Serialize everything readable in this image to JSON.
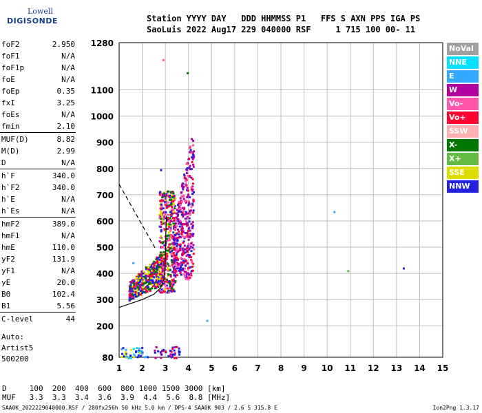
{
  "logo": {
    "line1": "Lowell",
    "line2": "DIGISONDE"
  },
  "header": {
    "line1": "Station YYYY DAY   DDD HHMMSS P1   FFS S AXN PPS IGA PS",
    "line2": "SaoLuis 2022 Aug17 229 040000 RSF     1 715 100 00- 11"
  },
  "params": [
    {
      "group": [
        {
          "name": "foF2",
          "value": "2.950"
        },
        {
          "name": "foF1",
          "value": "N/A"
        },
        {
          "name": "foF1p",
          "value": "N/A"
        },
        {
          "name": "foE",
          "value": "N/A"
        },
        {
          "name": "foEp",
          "value": "0.35"
        },
        {
          "name": "fxI",
          "value": "3.25"
        },
        {
          "name": "foEs",
          "value": "N/A"
        },
        {
          "name": "fmin",
          "value": "2.10"
        }
      ]
    },
    {
      "group": [
        {
          "name": "MUF(D)",
          "value": "8.82"
        },
        {
          "name": "M(D)",
          "value": "2.99"
        },
        {
          "name": "D",
          "value": "N/A"
        }
      ]
    },
    {
      "group": [
        {
          "name": "h`F",
          "value": "340.0"
        },
        {
          "name": "h`F2",
          "value": "340.0"
        },
        {
          "name": "h`E",
          "value": "N/A"
        },
        {
          "name": "h`Es",
          "value": "N/A"
        }
      ]
    },
    {
      "group": [
        {
          "name": "hmF2",
          "value": "389.0"
        },
        {
          "name": "hmF1",
          "value": "N/A"
        },
        {
          "name": "hmE",
          "value": "110.0"
        },
        {
          "name": "yF2",
          "value": "131.9"
        },
        {
          "name": "yF1",
          "value": "N/A"
        },
        {
          "name": "yE",
          "value": "20.0"
        },
        {
          "name": "B0",
          "value": "102.4"
        },
        {
          "name": "B1",
          "value": "5.56"
        }
      ]
    },
    {
      "group": [
        {
          "name": "C-level",
          "value": "44"
        }
      ]
    }
  ],
  "auto": {
    "line1": "Auto:",
    "line2": "Artist5",
    "line3": "500200"
  },
  "legend": [
    {
      "label": "NoVal",
      "color": "#a0a0a0"
    },
    {
      "label": "NNE",
      "color": "#00e0ff"
    },
    {
      "label": "E",
      "color": "#33aaff"
    },
    {
      "label": "W",
      "color": "#b000a0"
    },
    {
      "label": "Vo-",
      "color": "#ff55aa"
    },
    {
      "label": "Vo+",
      "color": "#ff0030"
    },
    {
      "label": "SSW",
      "color": "#ffb0b0"
    },
    {
      "label": "X-",
      "color": "#007700"
    },
    {
      "label": "X+",
      "color": "#66bb44"
    },
    {
      "label": "SSE",
      "color": "#dddd00"
    },
    {
      "label": "NNW",
      "color": "#2222dd"
    }
  ],
  "chart_data": {
    "type": "scatter",
    "title": "",
    "xlabel": "",
    "ylabel": "",
    "xlim": [
      1,
      15
    ],
    "ylim": [
      80,
      1280
    ],
    "x_ticks": [
      1,
      2,
      3,
      4,
      5,
      6,
      7,
      8,
      9,
      10,
      11,
      12,
      13,
      14,
      15
    ],
    "y_ticks": [
      80,
      200,
      300,
      400,
      500,
      600,
      700,
      800,
      900,
      1000,
      1100,
      1280
    ],
    "grid": true,
    "profile_curve": {
      "x": [
        1.0,
        1.5,
        2.0,
        2.5,
        2.8,
        2.95,
        3.0,
        3.02,
        3.05
      ],
      "y": [
        270,
        285,
        300,
        320,
        345,
        380,
        450,
        550,
        620
      ]
    },
    "dashed_line": {
      "x": [
        1.0,
        2.6
      ],
      "y": [
        740,
        490
      ]
    },
    "sparse_points": [
      {
        "x": 10.3,
        "y": 635,
        "color": "#33aaff"
      },
      {
        "x": 10.9,
        "y": 410,
        "color": "#66bb44"
      },
      {
        "x": 13.3,
        "y": 420,
        "color": "#2222dd"
      },
      {
        "x": 3.95,
        "y": 1165,
        "color": "#007700"
      },
      {
        "x": 2.9,
        "y": 1215,
        "color": "#ff55aa"
      },
      {
        "x": 1.6,
        "y": 440,
        "color": "#33aaff"
      },
      {
        "x": 4.8,
        "y": 220,
        "color": "#33aaff"
      },
      {
        "x": 2.8,
        "y": 795,
        "color": "#2222dd"
      }
    ],
    "echo_clusters": [
      {
        "x": [
          1.4,
          2.9
        ],
        "y": [
          300,
          430
        ],
        "colors": [
          "#2222dd",
          "#b000a0",
          "#ff0030",
          "#dddd00",
          "#007700"
        ]
      },
      {
        "x": [
          2.7,
          3.4
        ],
        "y": [
          330,
          720
        ],
        "colors": [
          "#ff0030",
          "#b000a0",
          "#dddd00",
          "#007700",
          "#2222dd",
          "#ff55aa"
        ]
      },
      {
        "x": [
          3.3,
          4.2
        ],
        "y": [
          380,
          960
        ],
        "colors": [
          "#b000a0",
          "#ff55aa",
          "#ff0030",
          "#b000a0",
          "#2222dd"
        ]
      },
      {
        "x": [
          1.0,
          2.2
        ],
        "y": [
          80,
          120
        ],
        "colors": [
          "#2222dd",
          "#33aaff",
          "#dddd00",
          "#00e0ff"
        ]
      },
      {
        "x": [
          2.5,
          3.6
        ],
        "y": [
          80,
          125
        ],
        "colors": [
          "#b000a0",
          "#ff0030",
          "#2222dd"
        ]
      }
    ]
  },
  "bottom": {
    "line1": "D     100  200  400  600  800 1000 1500 3000 [km]",
    "line2": "MUF   3.3  3.3  3.4  3.6  3.9  4.4  5.6  8.8 [MHz]"
  },
  "footer": "SAA0K_2022229040000.RSF / 280fx256h 50 kHz 5.0 km / DPS-4 SAA0K 903 / 2.6 S 315.8 E",
  "version": "Ion2Png 1.3.17"
}
